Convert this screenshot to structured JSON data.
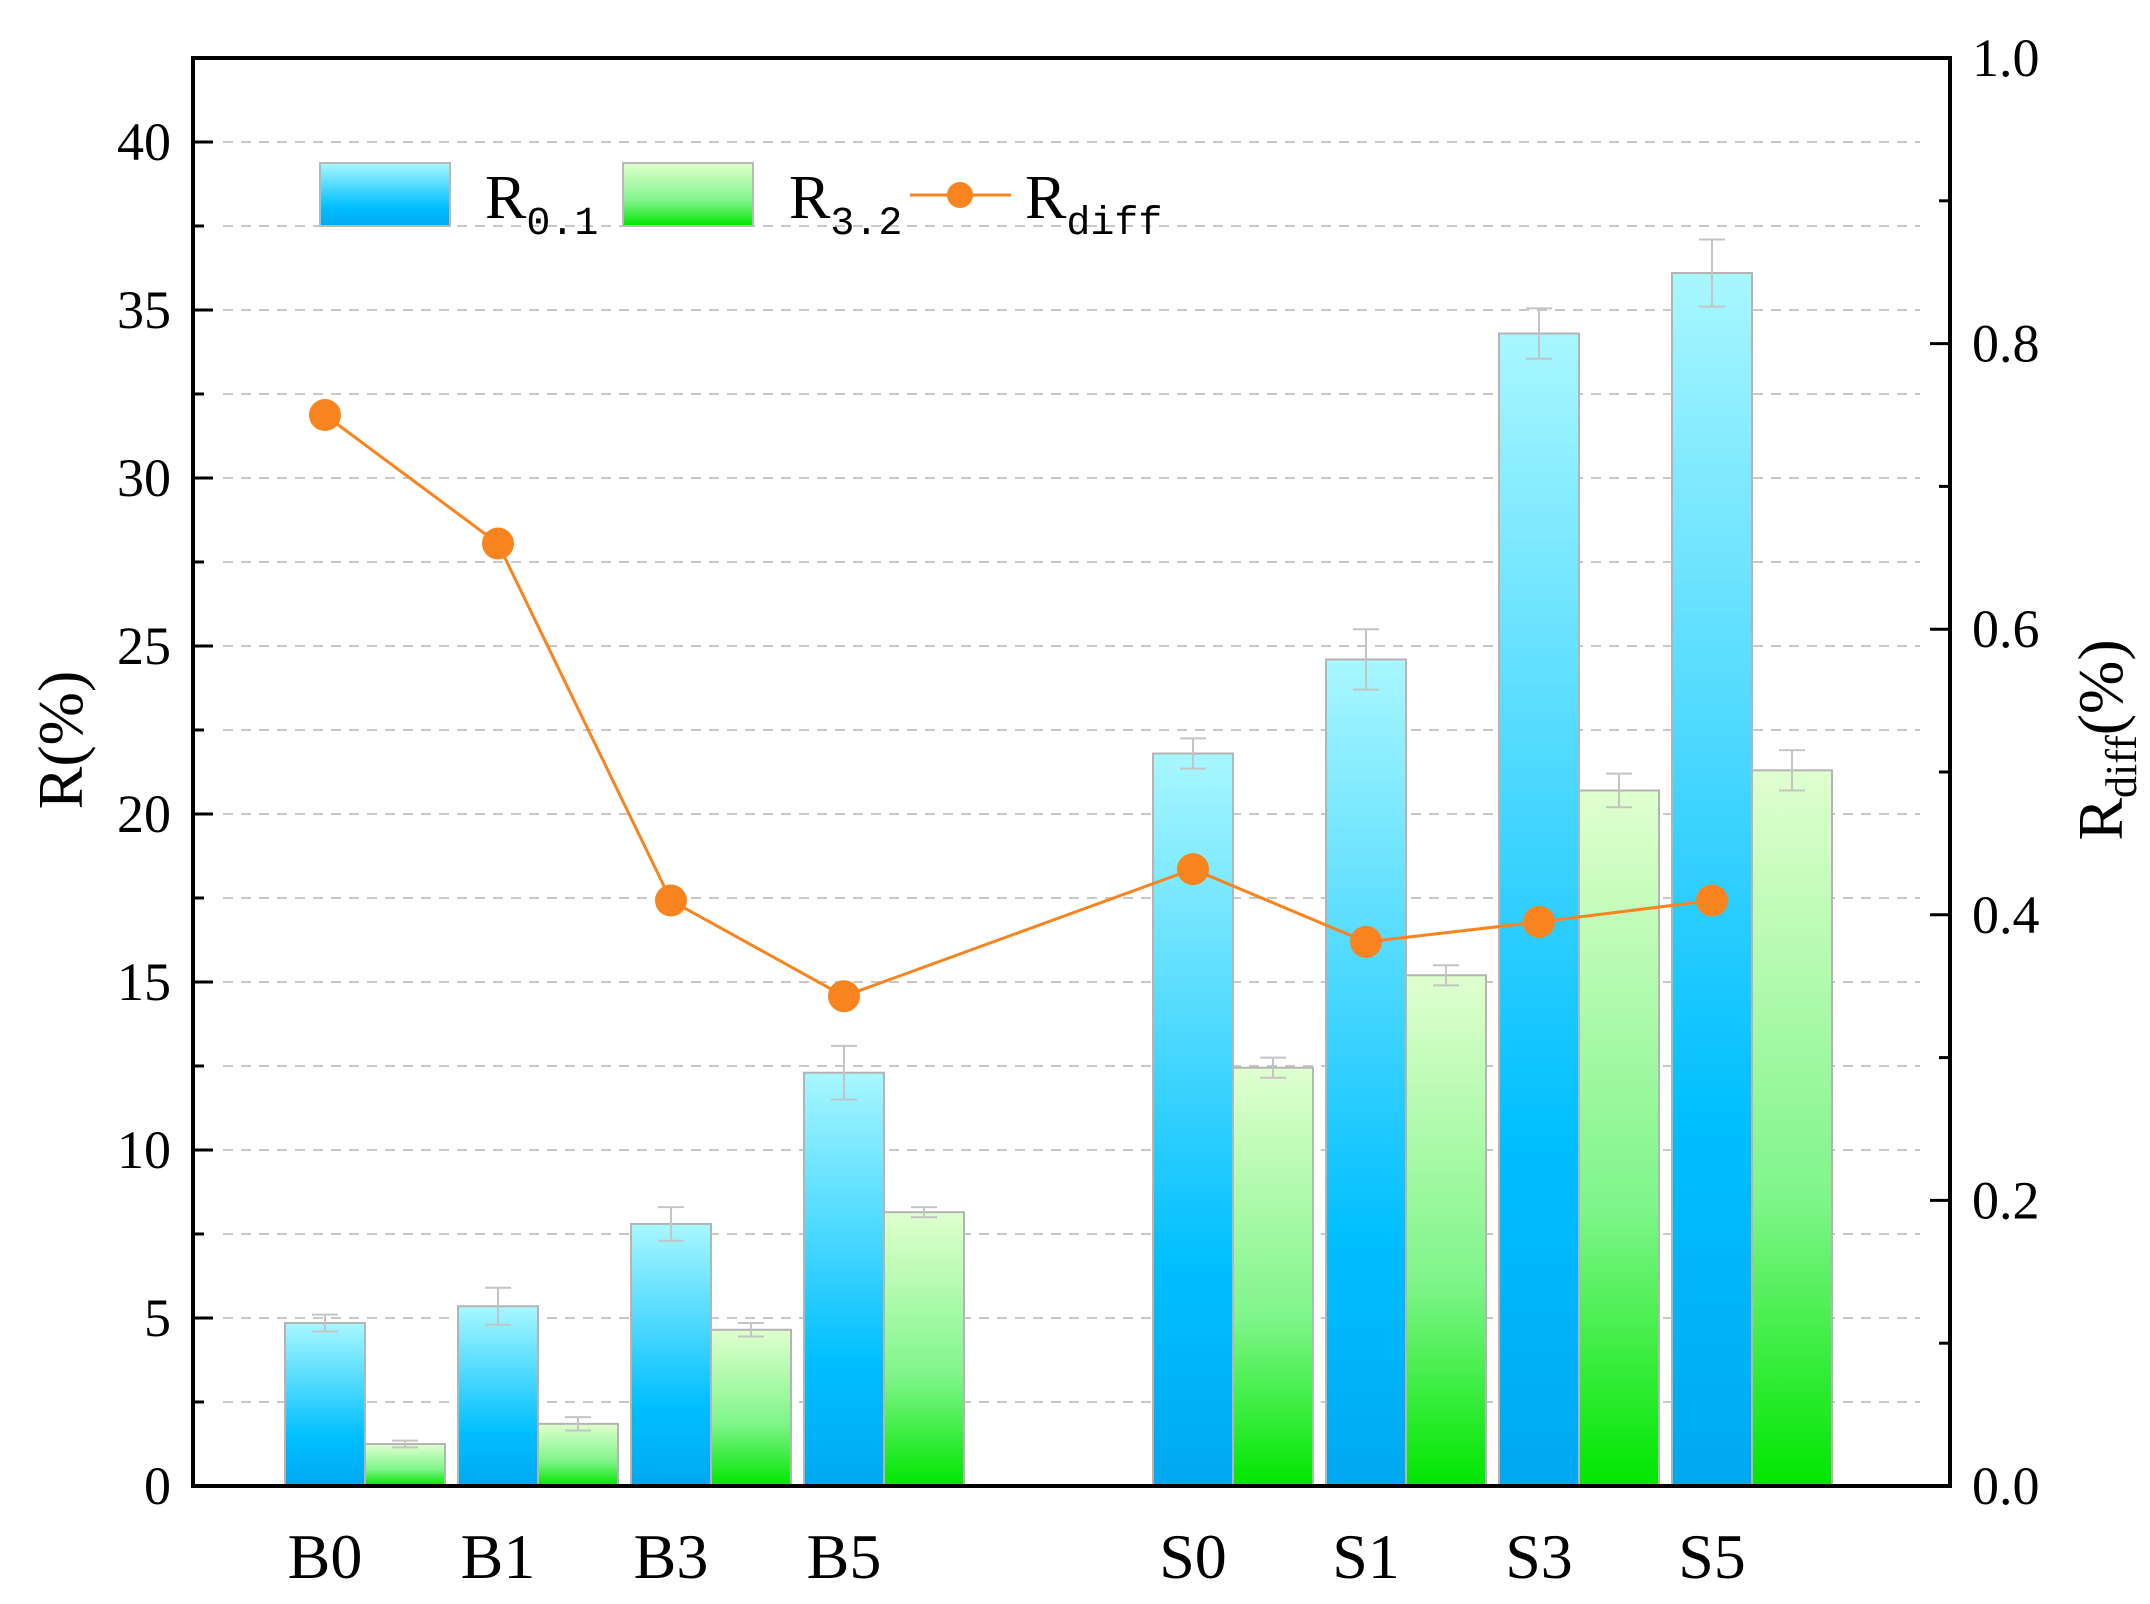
{
  "chart_data": {
    "type": "bar",
    "categories": [
      "B0",
      "B1",
      "B3",
      "B5",
      "S0",
      "S1",
      "S3",
      "S5"
    ],
    "series": [
      {
        "name": "R0.1",
        "label_main": "R",
        "label_sub": "0.1",
        "kind": "bar",
        "axis": "left",
        "values": [
          4.85,
          5.35,
          7.8,
          12.3,
          21.8,
          24.6,
          34.3,
          36.1
        ],
        "errors": [
          0.25,
          0.55,
          0.5,
          0.8,
          0.45,
          0.9,
          0.75,
          1.0
        ],
        "colors": [
          "#a8f7ff",
          "#00bfff",
          "#00a8f0"
        ]
      },
      {
        "name": "R3.2",
        "label_main": "R",
        "label_sub": "3.2",
        "kind": "bar",
        "axis": "left",
        "values": [
          1.25,
          1.85,
          4.65,
          8.15,
          12.45,
          15.2,
          20.7,
          21.3
        ],
        "errors": [
          0.1,
          0.2,
          0.2,
          0.15,
          0.3,
          0.3,
          0.5,
          0.6
        ],
        "colors": [
          "#e0ffcf",
          "#7ff58a",
          "#00e600"
        ]
      },
      {
        "name": "Rdiff",
        "label_main": "R",
        "label_sub": "diff",
        "kind": "line",
        "axis": "right",
        "values": [
          0.75,
          0.66,
          0.41,
          0.343,
          0.432,
          0.381,
          0.395,
          0.41
        ],
        "color": "#f7841e"
      }
    ],
    "left_axis": {
      "title": "R(%)",
      "ylim": [
        0,
        42.5
      ],
      "ticks": [
        "0",
        "5",
        "10",
        "15",
        "20",
        "25",
        "30",
        "35",
        "40"
      ]
    },
    "right_axis": {
      "title_main": "R",
      "title_sub": "diff",
      "title_rest": "(%)",
      "ylim": [
        0,
        1.0
      ],
      "ticks": [
        "0.0",
        "0.2",
        "0.4",
        "0.6",
        "0.8",
        "1.0"
      ]
    },
    "grid": true,
    "legend": "top-left"
  }
}
